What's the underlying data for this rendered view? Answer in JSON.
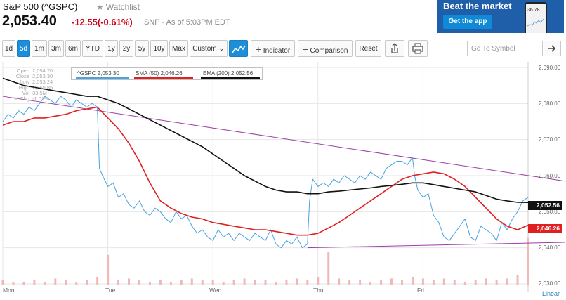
{
  "quote": {
    "title": "S&P 500 (^GSPC)",
    "watchlist": "Watchlist",
    "price": "2,053.40",
    "change": "-12.55(-0.61%)",
    "meta": "SNP - As of 5:03PM EDT"
  },
  "ad": {
    "headline": "Beat the market",
    "cta": "Get the app",
    "phone_value": "36.78"
  },
  "toolbar": {
    "ranges": [
      "1d",
      "5d",
      "1m",
      "3m",
      "6m",
      "YTD",
      "1y",
      "2y",
      "5y",
      "10y",
      "Max"
    ],
    "active_range": "5d",
    "custom": "Custom ⌄",
    "indicator": "Indicator",
    "comparison": "Comparison",
    "reset": "Reset",
    "symbol_placeholder": "Go To Symbol"
  },
  "ohlc": {
    "open_label": "Open",
    "open": "2,054.70",
    "close_label": "Close",
    "close": "2,053.30",
    "low_label": "Low",
    "low": "2,053.24",
    "high_label": "High",
    "high": "2,055.85",
    "vol_label": "Vol",
    "vol": "33.5M",
    "chg_label": "% Chg",
    "chg": "-1.01%"
  },
  "legend": {
    "gspc": "^GSPC 2,053.30",
    "sma": "SMA (50) 2,046.26",
    "ema": "EMA (200) 2,052.56"
  },
  "colors": {
    "price": "#4aa3df",
    "sma": "#e02020",
    "ema": "#111111",
    "trend": "#9b3fa5",
    "volume": "#f2b8b8",
    "accent": "#1d8fd8"
  },
  "scale_label": "Linear",
  "tags": {
    "ema": "2,052.56",
    "sma": "2,046.26"
  },
  "chart_data": {
    "type": "line",
    "x_ticks": [
      "Mon",
      "Tue",
      "Wed",
      "Thu",
      "Fri"
    ],
    "y_ticks": [
      "2,090.00",
      "2,080.00",
      "2,070.00",
      "2,060.00",
      "2,050.00",
      "2,040.00",
      "2,030.00"
    ],
    "ylim": [
      2030,
      2090
    ],
    "series": [
      {
        "name": "^GSPC",
        "key": "price",
        "x": [
          0,
          0.5,
          1,
          1.5,
          2,
          2.5,
          3,
          3.5,
          4,
          4.5,
          5,
          5.5,
          6,
          6.5,
          7,
          7.5,
          8,
          8.5,
          9,
          9.2,
          9.5,
          10,
          10.5,
          11,
          11.5,
          12,
          12.5,
          13,
          13.5,
          14,
          14.5,
          15,
          15.5,
          16,
          16.5,
          17,
          17.5,
          18,
          18.5,
          19,
          19.5,
          20,
          20.5,
          21,
          21.5,
          22,
          22.5,
          23,
          23.5,
          24,
          24.5,
          25,
          25.5,
          26,
          26.5,
          27,
          27.5,
          28,
          28.5,
          29,
          29.2,
          29.5,
          30,
          30.5,
          31,
          31.5,
          32,
          32.5,
          33,
          33.5,
          34,
          34.5,
          35,
          35.5,
          36,
          36.5,
          37,
          37.5,
          38,
          38.5,
          39,
          39.2,
          39.5,
          40,
          40.5,
          41,
          41.5,
          42,
          42.5,
          43,
          43.5,
          44,
          44.5,
          45,
          45.5,
          46,
          46.5,
          47,
          47.5,
          48,
          48.5,
          49,
          49.5,
          50
        ],
        "y": [
          2075,
          2077,
          2076,
          2078,
          2077,
          2079,
          2078,
          2080,
          2082,
          2081,
          2080,
          2082,
          2081,
          2079,
          2081,
          2080,
          2079,
          2080,
          2079,
          2062,
          2060,
          2057,
          2058,
          2054,
          2055,
          2052,
          2051,
          2053,
          2050,
          2049,
          2051,
          2050,
          2048,
          2047,
          2050,
          2048,
          2049,
          2046,
          2044,
          2045,
          2043,
          2042,
          2045,
          2043,
          2044,
          2042,
          2044,
          2043,
          2042,
          2044,
          2043,
          2042,
          2045,
          2041,
          2040,
          2042,
          2041,
          2043,
          2040,
          2041,
          2053,
          2059,
          2057,
          2058,
          2057,
          2059,
          2058,
          2060,
          2059,
          2058,
          2060,
          2059,
          2061,
          2060,
          2059,
          2062,
          2063,
          2064,
          2064,
          2063,
          2065,
          2060,
          2056,
          2054,
          2055,
          2049,
          2047,
          2043,
          2042,
          2044,
          2046,
          2048,
          2043,
          2042,
          2046,
          2045,
          2044,
          2042,
          2047,
          2045,
          2048,
          2050,
          2053,
          2054
        ],
        "last": "2,053.30"
      },
      {
        "name": "SMA (50)",
        "key": "sma",
        "x": [
          0,
          1,
          2,
          3,
          4,
          5,
          6,
          7,
          8,
          9,
          10,
          11,
          12,
          13,
          14,
          15,
          16,
          17,
          18,
          19,
          20,
          21,
          22,
          23,
          24,
          25,
          26,
          27,
          28,
          29,
          30,
          31,
          32,
          33,
          34,
          35,
          36,
          37,
          38,
          39,
          40,
          41,
          42,
          43,
          44,
          45,
          46,
          47,
          48,
          49,
          50
        ],
        "y": [
          2074,
          2075,
          2075,
          2076,
          2076,
          2076.5,
          2077,
          2078,
          2078.5,
          2079,
          2076,
          2073,
          2069,
          2064,
          2058,
          2053,
          2051,
          2049.5,
          2048.5,
          2048,
          2047,
          2046.5,
          2046,
          2045.5,
          2045,
          2045,
          2044.5,
          2044,
          2043.5,
          2043.5,
          2044,
          2045.5,
          2047,
          2049,
          2051,
          2053,
          2055,
          2057,
          2059,
          2060,
          2060.5,
          2061,
          2060.5,
          2059,
          2057,
          2054,
          2051,
          2048,
          2046,
          2045,
          2046.26
        ],
        "last": "2,046.26"
      },
      {
        "name": "EMA (200)",
        "key": "ema",
        "x": [
          0,
          1,
          2,
          3,
          4,
          5,
          6,
          7,
          8,
          9,
          10,
          11,
          12,
          13,
          14,
          15,
          16,
          17,
          18,
          19,
          20,
          21,
          22,
          23,
          24,
          25,
          26,
          27,
          28,
          29,
          30,
          31,
          32,
          33,
          34,
          35,
          36,
          37,
          38,
          39,
          40,
          41,
          42,
          43,
          44,
          45,
          46,
          47,
          48,
          49,
          50
        ],
        "y": [
          2087,
          2086,
          2085,
          2084.5,
          2084,
          2083.5,
          2083,
          2082.5,
          2082,
          2082,
          2081,
          2080,
          2078.5,
          2077,
          2075.5,
          2074,
          2072.5,
          2071,
          2069.5,
          2068,
          2066,
          2064,
          2062,
          2060,
          2058.5,
          2057,
          2056,
          2055.5,
          2055.5,
          2055,
          2055,
          2055.5,
          2055.7,
          2056,
          2056.3,
          2056.6,
          2057,
          2057.3,
          2057.6,
          2058,
          2058,
          2057.5,
          2057,
          2056.5,
          2056,
          2055.5,
          2054.5,
          2053.5,
          2053,
          2052.6,
          2052.56
        ],
        "last": "2,052.56"
      }
    ],
    "trendlines": [
      {
        "x": [
          0,
          50
        ],
        "y": [
          2082,
          2058.5
        ]
      },
      {
        "x": [
          29,
          50
        ],
        "y": [
          2040,
          2041.5
        ]
      }
    ],
    "volume": [
      3,
      2,
      2,
      3,
      2,
      4,
      3,
      2,
      3,
      5,
      18,
      3,
      4,
      3,
      2,
      3,
      2,
      3,
      4,
      3,
      3,
      2,
      3,
      4,
      3,
      3,
      2,
      3,
      4,
      3,
      5,
      20,
      4,
      3,
      3,
      2,
      3,
      4,
      3,
      5,
      4,
      3,
      4,
      3,
      2,
      3,
      4,
      3,
      4,
      6,
      28
    ],
    "grid": true
  }
}
